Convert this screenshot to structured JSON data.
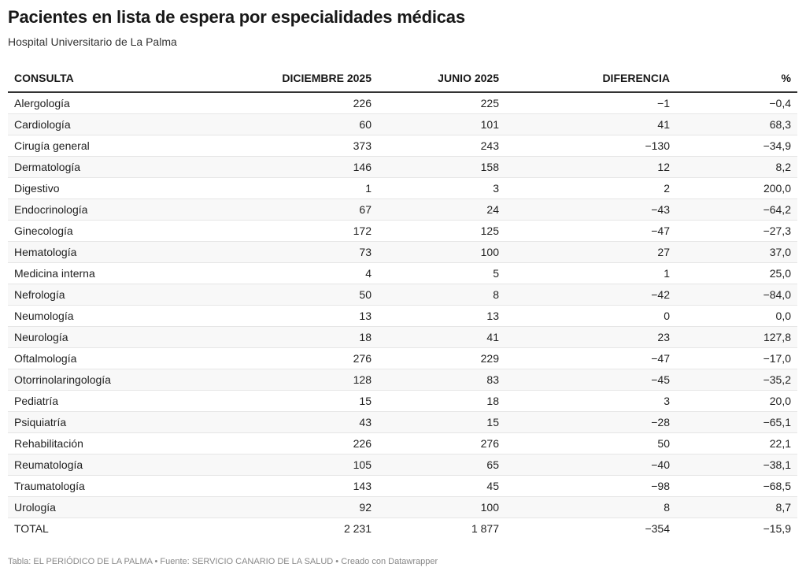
{
  "header": {
    "title": "Pacientes en lista de espera por especialidades médicas",
    "subtitle": "Hospital Universitario de La Palma"
  },
  "footer": {
    "credit": "Tabla: EL PERIÓDICO DE LA PALMA • Fuente: SERVICIO CANARIO DE LA SALUD • Creado con Datawrapper"
  },
  "chart_data": {
    "type": "table",
    "columns": [
      "CONSULTA",
      "DICIEMBRE 2025",
      "JUNIO 2025",
      "DIFERENCIA",
      "%"
    ],
    "rows": [
      [
        "Alergología",
        "226",
        "225",
        "−1",
        "−0,4"
      ],
      [
        "Cardiología",
        "60",
        "101",
        "41",
        "68,3"
      ],
      [
        "Cirugía general",
        "373",
        "243",
        "−130",
        "−34,9"
      ],
      [
        "Dermatología",
        "146",
        "158",
        "12",
        "8,2"
      ],
      [
        "Digestivo",
        "1",
        "3",
        "2",
        "200,0"
      ],
      [
        "Endocrinología",
        "67",
        "24",
        "−43",
        "−64,2"
      ],
      [
        "Ginecología",
        "172",
        "125",
        "−47",
        "−27,3"
      ],
      [
        "Hematología",
        "73",
        "100",
        "27",
        "37,0"
      ],
      [
        "Medicina interna",
        "4",
        "5",
        "1",
        "25,0"
      ],
      [
        "Nefrología",
        "50",
        "8",
        "−42",
        "−84,0"
      ],
      [
        "Neumología",
        "13",
        "13",
        "0",
        "0,0"
      ],
      [
        "Neurología",
        "18",
        "41",
        "23",
        "127,8"
      ],
      [
        "Oftalmología",
        "276",
        "229",
        "−47",
        "−17,0"
      ],
      [
        "Otorrinolaringología",
        "128",
        "83",
        "−45",
        "−35,2"
      ],
      [
        "Pediatría",
        "15",
        "18",
        "3",
        "20,0"
      ],
      [
        "Psiquiatría",
        "43",
        "15",
        "−28",
        "−65,1"
      ],
      [
        "Rehabilitación",
        "226",
        "276",
        "50",
        "22,1"
      ],
      [
        "Reumatología",
        "105",
        "65",
        "−40",
        "−38,1"
      ],
      [
        "Traumatología",
        "143",
        "45",
        "−98",
        "−68,5"
      ],
      [
        "Urología",
        "92",
        "100",
        "8",
        "8,7"
      ],
      [
        "TOTAL",
        "2 231",
        "1 877",
        "−354",
        "−15,9"
      ]
    ]
  }
}
